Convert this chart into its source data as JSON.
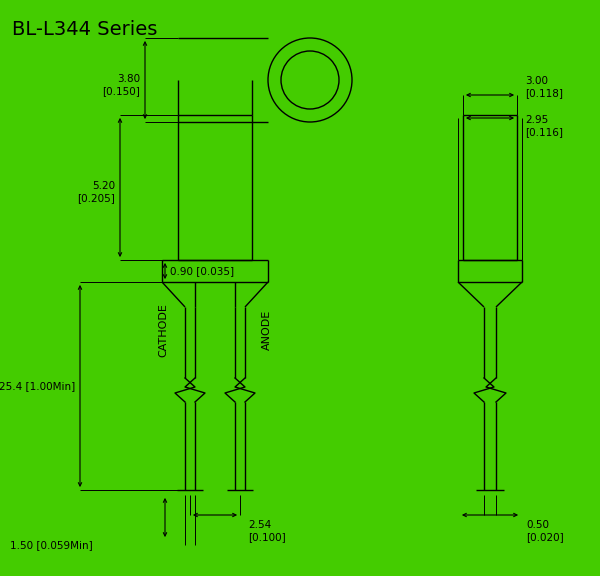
{
  "title": "BL-L344 Series",
  "bg_color": "#44cc00",
  "line_color": "#000000",
  "text_color": "#000000",
  "title_fontsize": 14,
  "dim_fontsize": 7.5,
  "label_fontsize": 8,
  "dims": {
    "top_view_label": "3.80\n[0.150]",
    "body_height_label": "5.20\n[0.205]",
    "flange_label": "0.90 [0.035]",
    "lead_label": "25.4 [1.00Min]",
    "lead_spacing_label": "2.54\n[0.100]",
    "lead_diam_label": "1.50 [0.059Min]",
    "side_outer_label": "3.00\n[0.118]",
    "side_inner_label": "2.95\n[0.116]",
    "side_lead_diam_label": "0.50\n[0.020]"
  },
  "labels": {
    "cathode": "CATHODE",
    "anode": "ANODE"
  }
}
